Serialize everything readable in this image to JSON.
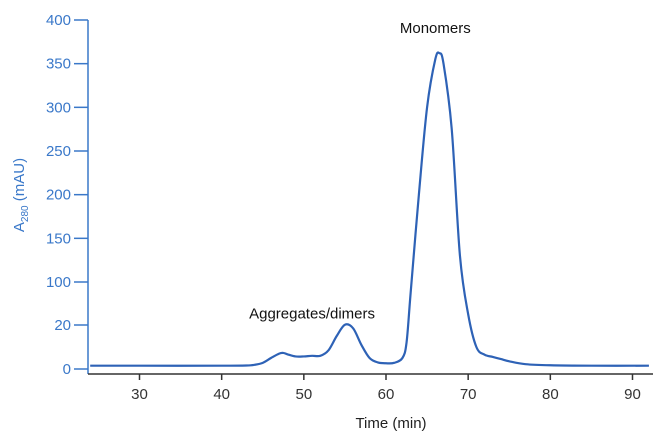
{
  "chart_data": {
    "type": "line",
    "title": "",
    "xlabel": "Time (min)",
    "ylabel": {
      "main": "A",
      "subscript": "280",
      "suffix": " (mAU)"
    },
    "x_ticks": [
      30,
      40,
      50,
      60,
      70,
      80,
      90
    ],
    "y_ticks": [
      0,
      20,
      100,
      150,
      200,
      250,
      300,
      350,
      400
    ],
    "xlim": [
      24,
      92
    ],
    "y_scale": "piecewise: 0-20 expanded, 100-400 linear, broken between 20 and 100",
    "colors": {
      "line": "#2e62b6",
      "y_axis": "#3a78c9",
      "x_axis": "#333333"
    },
    "annotations": [
      {
        "text": "Aggregates/dimers",
        "x": 51,
        "y": 32
      },
      {
        "text": "Monomers",
        "x": 66,
        "y": 385
      }
    ],
    "series": [
      {
        "points": [
          [
            24,
            1.5
          ],
          [
            30,
            1.5
          ],
          [
            40,
            1.5
          ],
          [
            43,
            1.6
          ],
          [
            44,
            1.9
          ],
          [
            45,
            2.8
          ],
          [
            46,
            5.0
          ],
          [
            47,
            7.0
          ],
          [
            47.5,
            7.3
          ],
          [
            48,
            6.7
          ],
          [
            49,
            5.7
          ],
          [
            50,
            5.7
          ],
          [
            51,
            6.0
          ],
          [
            52,
            6.0
          ],
          [
            53,
            8.5
          ],
          [
            54,
            15.0
          ],
          [
            55,
            20.5
          ],
          [
            56,
            18.5
          ],
          [
            57,
            11.0
          ],
          [
            58,
            5.0
          ],
          [
            59,
            3.0
          ],
          [
            60,
            2.6
          ],
          [
            61,
            2.8
          ],
          [
            62,
            5.0
          ],
          [
            62.5,
            12.0
          ],
          [
            63,
            80
          ],
          [
            64,
            200
          ],
          [
            65,
            300
          ],
          [
            66,
            355
          ],
          [
            66.5,
            362
          ],
          [
            67,
            350
          ],
          [
            68,
            275
          ],
          [
            69,
            130
          ],
          [
            70,
            40
          ],
          [
            71,
            10
          ],
          [
            72,
            6.5
          ],
          [
            73,
            5.5
          ],
          [
            74,
            4.5
          ],
          [
            75,
            3.5
          ],
          [
            77,
            2.2
          ],
          [
            80,
            1.7
          ],
          [
            85,
            1.5
          ],
          [
            92,
            1.5
          ]
        ]
      }
    ]
  }
}
